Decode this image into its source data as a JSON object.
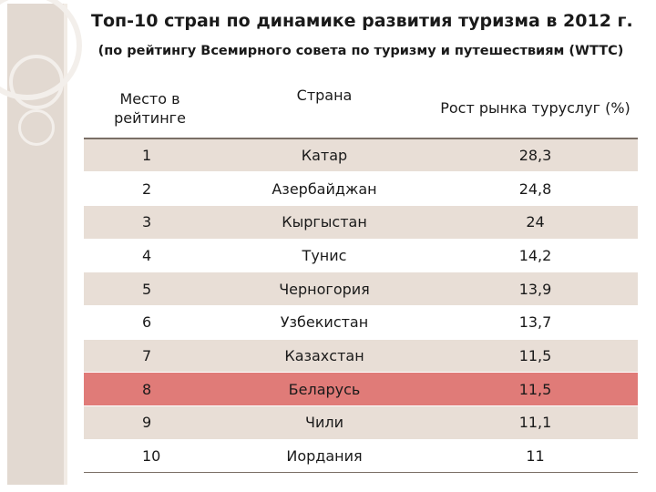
{
  "title": "Топ-10 стран по динамике развития туризма в 2012 г.",
  "subtitle": "(по рейтингу Всемирного совета по туризму и путешествиям (WTTC)",
  "table": {
    "headers": [
      "Место в рейтинге",
      "Страна",
      "Рост рынка туруслуг (%)"
    ],
    "rows": [
      {
        "rank": "1",
        "country": "Катар",
        "growth": "28,3"
      },
      {
        "rank": "2",
        "country": "Азербайджан",
        "growth": "24,8"
      },
      {
        "rank": "3",
        "country": "Кыргыстан",
        "growth": "24"
      },
      {
        "rank": "4",
        "country": "Тунис",
        "growth": "14,2"
      },
      {
        "rank": "5",
        "country": "Черногория",
        "growth": "13,9"
      },
      {
        "rank": "6",
        "country": "Узбекистан",
        "growth": "13,7"
      },
      {
        "rank": "7",
        "country": "Казахстан",
        "growth": "11,5"
      },
      {
        "rank": "8",
        "country": "Беларусь",
        "growth": "11,5"
      },
      {
        "rank": "9",
        "country": "Чили",
        "growth": "11,1"
      },
      {
        "rank": "10",
        "country": "Иордания",
        "growth": "11"
      }
    ],
    "highlighted_row": "8"
  },
  "colors": {
    "accent_band": "#e2d9d1",
    "row_shade": "#e8ded6",
    "row_highlight": "#e07b78"
  }
}
